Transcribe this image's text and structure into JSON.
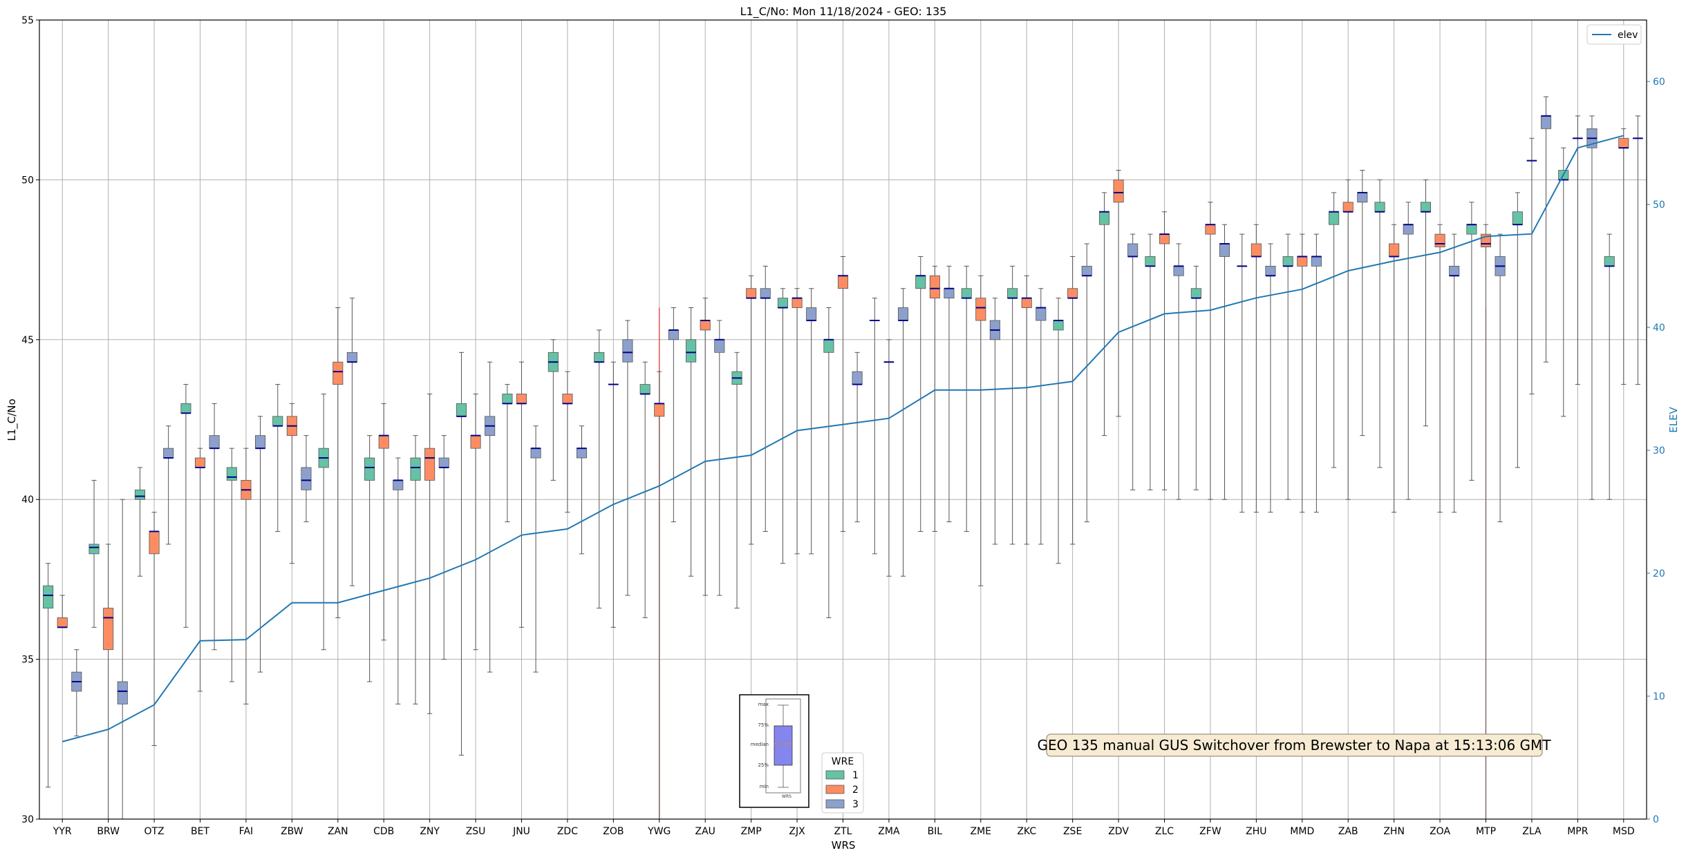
{
  "chart_data": {
    "type": "box",
    "title": "L1_C/No: Mon 11/18/2024 - GEO: 135",
    "xlabel": "WRS",
    "ylabel": "L1_C/No",
    "y2label": "ELEV",
    "ylim": [
      30,
      55
    ],
    "y2lim": [
      0,
      65
    ],
    "yticks": [
      30,
      35,
      40,
      45,
      50,
      55
    ],
    "y2ticks": [
      0,
      10,
      20,
      30,
      40,
      50,
      60
    ],
    "grid": true,
    "categories": [
      "YYR",
      "BRW",
      "OTZ",
      "BET",
      "FAI",
      "ZBW",
      "ZAN",
      "CDB",
      "ZNY",
      "ZSU",
      "JNU",
      "ZDC",
      "ZOB",
      "YWG",
      "ZAU",
      "ZMP",
      "ZJX",
      "ZTL",
      "ZMA",
      "BIL",
      "ZME",
      "ZKC",
      "ZSE",
      "ZDV",
      "ZLC",
      "ZFW",
      "ZHU",
      "MMD",
      "ZAB",
      "ZHN",
      "ZOA",
      "MTP",
      "ZLA",
      "MPR",
      "MSD"
    ],
    "series": [
      {
        "name": "1",
        "color": "#66c2a5",
        "boxes": [
          [
            31,
            36.6,
            37,
            37.3,
            38
          ],
          [
            36,
            38.3,
            38.5,
            38.6,
            40.6
          ],
          [
            37.6,
            40,
            40.1,
            40.3,
            41
          ],
          [
            36,
            42.7,
            42.7,
            43,
            43.6
          ],
          [
            34.3,
            40.6,
            40.7,
            41,
            41.6
          ],
          [
            39,
            42.3,
            42.3,
            42.6,
            43.6
          ],
          [
            35.3,
            41,
            41.3,
            41.6,
            43.3
          ],
          [
            34.3,
            40.6,
            41,
            41.3,
            42
          ],
          [
            33.6,
            40.6,
            41,
            41.3,
            42
          ],
          [
            32,
            42.6,
            42.6,
            43,
            44.6
          ],
          [
            39.3,
            43,
            43,
            43.3,
            43.6
          ],
          [
            40.6,
            44,
            44.3,
            44.6,
            45
          ],
          [
            36.6,
            44.3,
            44.3,
            44.6,
            45.3
          ],
          [
            36.3,
            43.3,
            43.3,
            43.6,
            44.3
          ],
          [
            37.6,
            44.3,
            44.6,
            45,
            46
          ],
          [
            36.6,
            43.6,
            43.8,
            44,
            44.6
          ],
          [
            38,
            46,
            46,
            46.3,
            46.6
          ],
          [
            36.3,
            44.6,
            45,
            45,
            46
          ],
          [
            38.3,
            45.6,
            45.6,
            45.6,
            46.3
          ],
          [
            39,
            46.6,
            47,
            47,
            47.6
          ],
          [
            39,
            46.3,
            46.3,
            46.6,
            47.3
          ],
          [
            38.6,
            46.3,
            46.3,
            46.6,
            47.3
          ],
          [
            38,
            45.3,
            45.6,
            45.6,
            46.3
          ],
          [
            42,
            48.6,
            49,
            49,
            49.6
          ],
          [
            40.3,
            47.3,
            47.3,
            47.6,
            48.3
          ],
          [
            40.3,
            46.3,
            46.3,
            46.6,
            47.3
          ],
          [
            39.6,
            47.3,
            47.3,
            47.3,
            48.3
          ],
          [
            40,
            47.3,
            47.3,
            47.6,
            48.3
          ],
          [
            41,
            48.6,
            49,
            49,
            49.6
          ],
          [
            41,
            49,
            49,
            49.3,
            50
          ],
          [
            42.3,
            49,
            49,
            49.3,
            50
          ],
          [
            40.6,
            48.3,
            48.6,
            48.6,
            49.3
          ],
          [
            41,
            48.6,
            48.6,
            49,
            49.6
          ],
          [
            42.6,
            50,
            50,
            50.3,
            51
          ],
          [
            40,
            47.3,
            47.3,
            47.6,
            48.3
          ]
        ]
      },
      {
        "name": "2",
        "color": "#fc8d62",
        "boxes": [
          [
            36,
            36,
            36,
            36.3,
            37
          ],
          [
            30,
            35.3,
            36.3,
            36.6,
            38.6
          ],
          [
            32.3,
            38.3,
            39,
            39,
            39.6
          ],
          [
            34,
            41,
            41,
            41.3,
            41.6
          ],
          [
            33.6,
            40,
            40.3,
            40.6,
            41.6
          ],
          [
            38,
            42,
            42.3,
            42.6,
            43
          ],
          [
            36.3,
            43.6,
            44,
            44.3,
            46
          ],
          [
            35.6,
            41.6,
            42,
            42,
            43
          ],
          [
            33.3,
            40.6,
            41.3,
            41.6,
            43.3
          ],
          [
            35.3,
            41.6,
            42,
            42,
            43.3
          ],
          [
            36,
            43,
            43,
            43.3,
            44.3
          ],
          [
            39.6,
            43,
            43,
            43.3,
            44
          ],
          [
            36,
            43.6,
            43.6,
            43.6,
            44.3
          ],
          [
            30,
            42.6,
            43,
            43,
            44
          ],
          [
            37,
            45.3,
            45.6,
            45.6,
            46.3
          ],
          [
            38.6,
            46.3,
            46.3,
            46.6,
            47
          ],
          [
            38.3,
            46,
            46.3,
            46.3,
            46.6
          ],
          [
            39,
            46.6,
            47,
            47,
            47.6
          ],
          [
            37.6,
            44.3,
            44.3,
            44.3,
            45
          ],
          [
            39,
            46.3,
            46.6,
            47,
            47.3
          ],
          [
            37.3,
            45.6,
            46,
            46.3,
            47
          ],
          [
            38.6,
            46,
            46.3,
            46.3,
            47
          ],
          [
            38.6,
            46.3,
            46.3,
            46.6,
            47.6
          ],
          [
            42.6,
            49.3,
            49.6,
            50,
            50.3
          ],
          [
            40.3,
            48,
            48.3,
            48.3,
            49
          ],
          [
            40,
            48.3,
            48.6,
            48.6,
            49.3
          ],
          [
            39.6,
            47.6,
            47.6,
            48,
            48.6
          ],
          [
            39.6,
            47.3,
            47.6,
            47.6,
            48.3
          ],
          [
            40,
            49,
            49,
            49.3,
            50
          ],
          [
            39.6,
            47.6,
            47.6,
            48,
            48.6
          ],
          [
            39.6,
            47.9,
            48,
            48.3,
            48.6
          ],
          [
            30,
            47.9,
            48,
            48.3,
            48.6
          ],
          [
            43.3,
            50.6,
            50.6,
            50.6,
            51.3
          ],
          [
            43.6,
            51.3,
            51.3,
            51.3,
            52
          ],
          [
            43.6,
            51,
            51,
            51.3,
            51.6
          ]
        ]
      },
      {
        "name": "3",
        "color": "#8da0cb",
        "boxes": [
          [
            32.6,
            34,
            34.3,
            34.6,
            35.3
          ],
          [
            30,
            33.6,
            34,
            34.3,
            40
          ],
          [
            38.6,
            41.3,
            41.3,
            41.6,
            42.3
          ],
          [
            35.3,
            41.6,
            41.6,
            42,
            43
          ],
          [
            34.6,
            41.6,
            41.6,
            42,
            42.6
          ],
          [
            39.3,
            40.3,
            40.6,
            41,
            42
          ],
          [
            37.3,
            44.3,
            44.3,
            44.6,
            46.3
          ],
          [
            33.6,
            40.3,
            40.6,
            40.6,
            41.3
          ],
          [
            35,
            41,
            41,
            41.3,
            42
          ],
          [
            34.6,
            42,
            42.3,
            42.6,
            44.3
          ],
          [
            34.6,
            41.3,
            41.6,
            41.6,
            42.3
          ],
          [
            38.3,
            41.3,
            41.6,
            41.6,
            42.3
          ],
          [
            37,
            44.3,
            44.6,
            45,
            45.6
          ],
          [
            39.3,
            45,
            45.3,
            45.3,
            46
          ],
          [
            37,
            44.6,
            45,
            45,
            45.6
          ],
          [
            39,
            46.3,
            46.3,
            46.6,
            47.3
          ],
          [
            38.3,
            45.6,
            45.6,
            46,
            46.6
          ],
          [
            39.3,
            43.6,
            43.6,
            44,
            44.6
          ],
          [
            37.6,
            45.6,
            45.6,
            46,
            46.6
          ],
          [
            39.3,
            46.3,
            46.6,
            46.6,
            47.3
          ],
          [
            38.6,
            45,
            45.3,
            45.6,
            46.3
          ],
          [
            38.6,
            45.6,
            46,
            46,
            46.6
          ],
          [
            39.3,
            47,
            47,
            47.3,
            48
          ],
          [
            40.3,
            47.6,
            47.6,
            48,
            48.3
          ],
          [
            40,
            47,
            47.3,
            47.3,
            48
          ],
          [
            40,
            47.6,
            48,
            48,
            48.6
          ],
          [
            39.6,
            47,
            47,
            47.3,
            48
          ],
          [
            39.6,
            47.3,
            47.6,
            47.6,
            48.3
          ],
          [
            42,
            49.3,
            49.6,
            49.6,
            50.3
          ],
          [
            40,
            48.3,
            48.6,
            48.6,
            49.3
          ],
          [
            39.6,
            47,
            47,
            47.3,
            48.3
          ],
          [
            39.3,
            47,
            47.3,
            47.6,
            48.3
          ],
          [
            44.3,
            51.6,
            52,
            52,
            52.6
          ],
          [
            40,
            51,
            51.3,
            51.6,
            52
          ],
          [
            43.6,
            51.3,
            51.3,
            51.3,
            52
          ]
        ]
      }
    ],
    "elev": {
      "name": "elev",
      "color": "#1f77b4",
      "values": [
        6.3,
        7.3,
        9.3,
        14.5,
        14.6,
        17.6,
        17.6,
        18.6,
        19.6,
        21.1,
        23.1,
        23.6,
        25.6,
        27.1,
        29.1,
        29.6,
        31.6,
        32.1,
        32.6,
        34.9,
        34.9,
        35.1,
        35.6,
        39.6,
        41.1,
        41.4,
        42.4,
        43.1,
        44.6,
        45.4,
        46.1,
        47.4,
        47.6,
        54.6,
        55.6
      ]
    },
    "switchover_lines": [
      "YWG",
      "MTP"
    ],
    "annotation": "GEO 135 manual GUS Switchover from Brewster to Napa at 15:13:06 GMT",
    "legend_wre": {
      "title": "WRE",
      "labels": [
        "1",
        "2",
        "3"
      ]
    },
    "legend_elev": {
      "label": "elev"
    },
    "inset_key": {
      "labels": [
        "max",
        "75%",
        "median",
        "25%",
        "min"
      ],
      "caption": "WRS"
    }
  }
}
